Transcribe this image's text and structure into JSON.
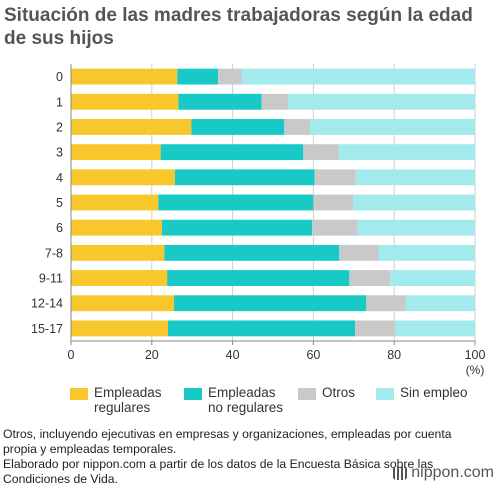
{
  "title": "Situación de las madres trabajadoras según la edad de sus hijos",
  "chart_data": {
    "type": "bar",
    "orientation": "horizontal",
    "stacked": true,
    "categories": [
      "0",
      "1",
      "2",
      "3",
      "4",
      "5",
      "6",
      "7-8",
      "9-11",
      "12-14",
      "15-17"
    ],
    "series": [
      {
        "name": "Empleadas\nregulares",
        "color": "#f7c72b",
        "values": [
          26.3,
          26.6,
          29.8,
          22.2,
          25.7,
          21.6,
          22.5,
          23.1,
          23.8,
          25.5,
          24.0
        ]
      },
      {
        "name": "Empleadas\nno regulares",
        "color": "#19c9c6",
        "values": [
          10.1,
          20.6,
          23.0,
          35.3,
          34.6,
          38.4,
          37.2,
          43.3,
          45.1,
          47.6,
          46.3
        ]
      },
      {
        "name": "Otros",
        "color": "#c9c9c9",
        "values": [
          5.8,
          6.6,
          6.4,
          8.8,
          10.2,
          9.8,
          11.2,
          9.8,
          10.1,
          9.7,
          10.0
        ]
      },
      {
        "name": "Sin empleo",
        "color": "#a3eaec",
        "values": [
          57.8,
          46.2,
          40.8,
          33.7,
          29.5,
          30.2,
          29.1,
          23.8,
          21.0,
          17.2,
          19.7
        ]
      }
    ],
    "xlim": [
      0,
      100
    ],
    "xticks": [
      "0",
      "20",
      "40",
      "60",
      "80",
      "100"
    ],
    "xunit": "(%)",
    "grid": true,
    "legend_position": "bottom"
  },
  "footnote": {
    "line1": "Otros, incluyendo ejecutivas en empresas y organizaciones, empleadas por cuenta propia y empleadas temporales.",
    "line2": "Elaborado por nippon.com a partir de los datos de la Encuesta Básica sobre las Condiciones de Vida."
  },
  "brand": {
    "name": "nippon.com"
  }
}
